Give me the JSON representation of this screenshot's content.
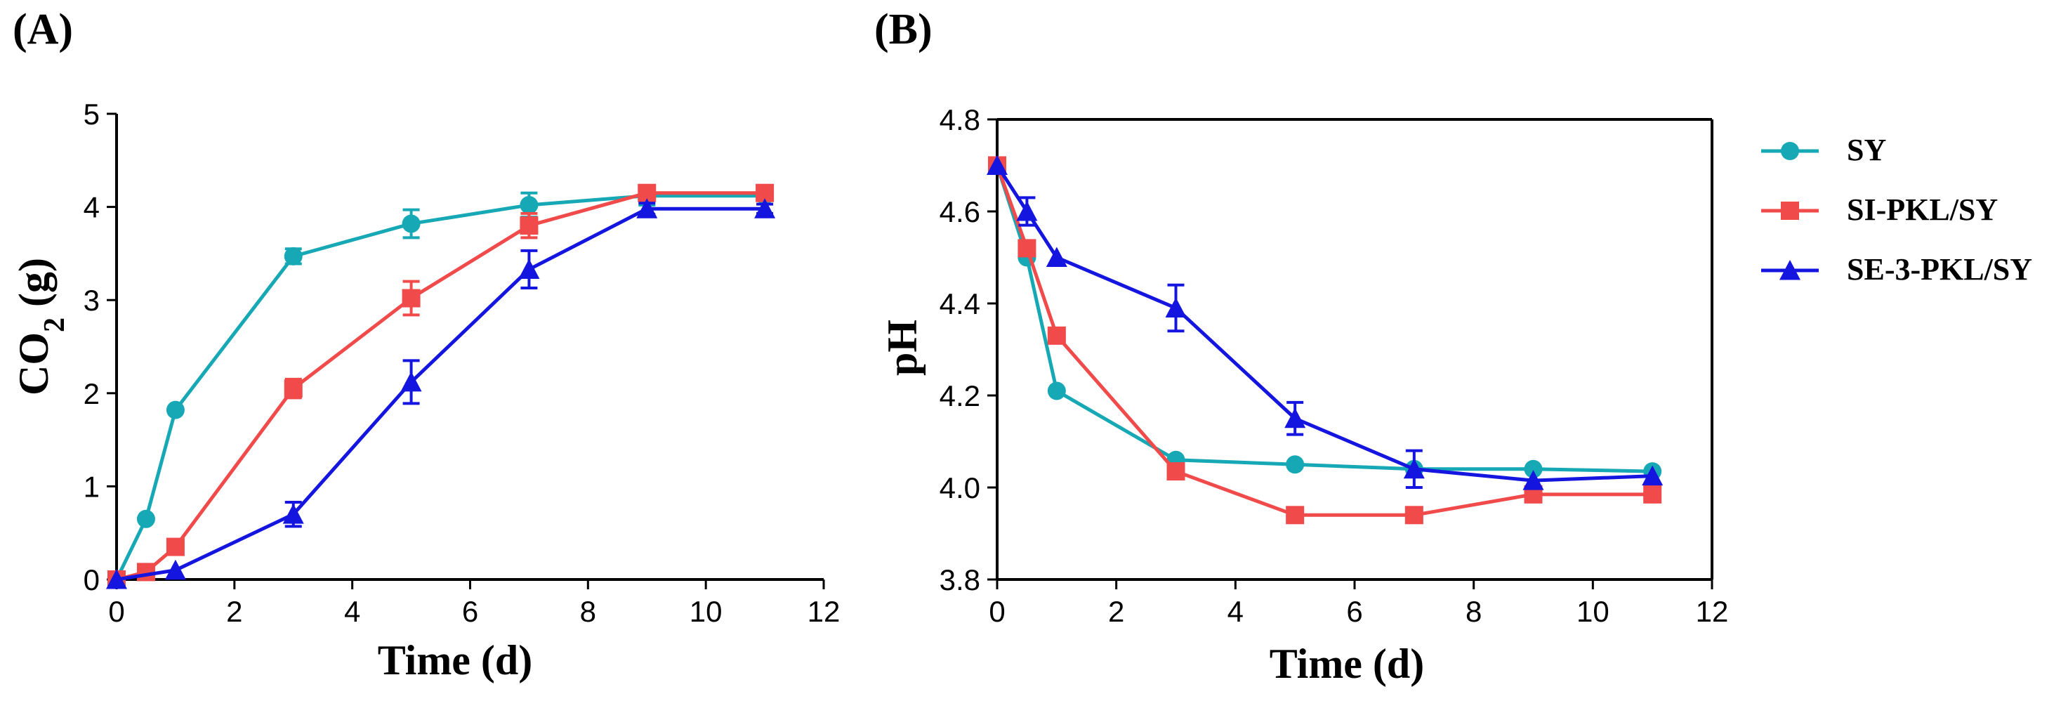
{
  "chart_data": [
    {
      "panel": "(A)",
      "type": "line",
      "xlabel": "Time (d)",
      "ylabel_main": "CO",
      "ylabel_sub": "2",
      "ylabel_unit": " (g)",
      "xlim": [
        0,
        12
      ],
      "ylim": [
        0,
        5
      ],
      "xticks": [
        0,
        2,
        4,
        6,
        8,
        10,
        12
      ],
      "yticks": [
        0,
        1,
        2,
        3,
        4,
        5
      ],
      "series": [
        {
          "name": "SY",
          "color": "#17a8b5",
          "marker": "circle",
          "x": [
            0,
            0.5,
            1,
            3,
            5,
            7,
            9,
            11
          ],
          "y": [
            0,
            0.65,
            1.82,
            3.47,
            3.82,
            4.02,
            4.12,
            4.12
          ],
          "err": [
            0,
            0,
            0,
            0.08,
            0.15,
            0.13,
            0.1,
            0.05
          ]
        },
        {
          "name": "SI-PKL/SY",
          "color": "#f04a4a",
          "marker": "square",
          "x": [
            0,
            0.5,
            1,
            3,
            5,
            7,
            9,
            11
          ],
          "y": [
            0,
            0.08,
            0.35,
            2.05,
            3.02,
            3.8,
            4.15,
            4.15
          ],
          "err": [
            0,
            0,
            0,
            0.1,
            0.18,
            0.13,
            0.08,
            0.05
          ]
        },
        {
          "name": "SE-3-PKL/SY",
          "color": "#1515e0",
          "marker": "triangle",
          "x": [
            0,
            1,
            3,
            5,
            7,
            9,
            11
          ],
          "y": [
            0,
            0.1,
            0.7,
            2.12,
            3.33,
            3.98,
            3.98
          ],
          "err": [
            0,
            0,
            0.13,
            0.23,
            0.2,
            0.06,
            0.05
          ]
        }
      ]
    },
    {
      "panel": "(B)",
      "type": "line",
      "xlabel": "Time (d)",
      "ylabel_main": "pH",
      "ylabel_sub": "",
      "ylabel_unit": "",
      "xlim": [
        0,
        12
      ],
      "ylim": [
        3.8,
        4.8
      ],
      "xticks": [
        0,
        2,
        4,
        6,
        8,
        10,
        12
      ],
      "yticks": [
        3.8,
        4.0,
        4.2,
        4.4,
        4.6,
        4.8
      ],
      "ytick_labels": [
        "3.8",
        "4.0",
        "4.2",
        "4.4",
        "4.6",
        "4.8"
      ],
      "series": [
        {
          "name": "SY",
          "color": "#17a8b5",
          "marker": "circle",
          "x": [
            0,
            0.5,
            1,
            3,
            5,
            7,
            9,
            11
          ],
          "y": [
            4.7,
            4.5,
            4.21,
            4.06,
            4.05,
            4.04,
            4.04,
            4.035
          ],
          "err": [
            0,
            0,
            0,
            0,
            0,
            0,
            0,
            0
          ]
        },
        {
          "name": "SI-PKL/SY",
          "color": "#f04a4a",
          "marker": "square",
          "x": [
            0,
            0.5,
            1,
            3,
            5,
            7,
            9,
            11
          ],
          "y": [
            4.7,
            4.52,
            4.33,
            4.035,
            3.94,
            3.94,
            3.985,
            3.985
          ],
          "err": [
            0,
            0,
            0,
            0,
            0,
            0,
            0,
            0
          ]
        },
        {
          "name": "SE-3-PKL/SY",
          "color": "#1515e0",
          "marker": "triangle",
          "x": [
            0,
            0.5,
            1,
            3,
            5,
            7,
            9,
            11
          ],
          "y": [
            4.7,
            4.6,
            4.5,
            4.39,
            4.15,
            4.04,
            4.015,
            4.025
          ],
          "err": [
            0,
            0.03,
            0,
            0.05,
            0.035,
            0.04,
            0,
            0
          ]
        }
      ]
    }
  ],
  "legend": [
    {
      "label": "SY",
      "color": "#17a8b5",
      "marker": "circle"
    },
    {
      "label": "SI-PKL/SY",
      "color": "#f04a4a",
      "marker": "square"
    },
    {
      "label": "SE-3-PKL/SY",
      "color": "#1515e0",
      "marker": "triangle"
    }
  ]
}
